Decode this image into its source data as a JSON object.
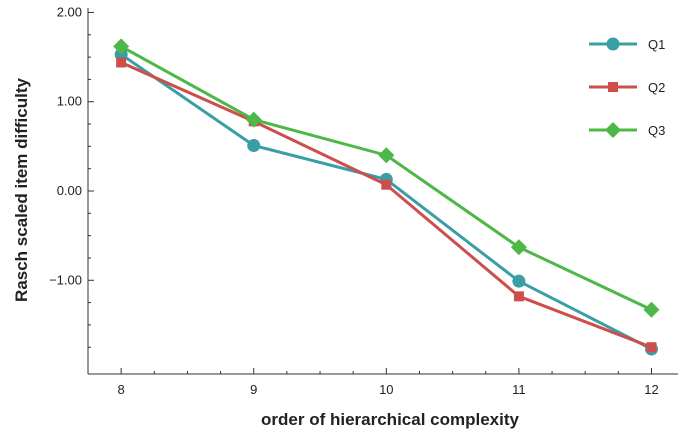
{
  "chart_data": {
    "type": "line",
    "title": "",
    "xlabel": "order of hierarchical complexity",
    "ylabel": "Rasch scaled item difficulty",
    "x": [
      8,
      9,
      10,
      11,
      12
    ],
    "x_tick_labels": [
      "8",
      "9",
      "10",
      "11",
      "12"
    ],
    "y_tick_values": [
      2.0,
      1.0,
      0.0,
      -1.0
    ],
    "y_tick_labels": [
      "2.00",
      "1.00",
      "0.00",
      "−1.00"
    ],
    "ylim": [
      -2.05,
      2.05
    ],
    "xlim": [
      7.75,
      12.2
    ],
    "grid": false,
    "legend_position": "top-right",
    "series": [
      {
        "name": "Q1",
        "marker": "circle",
        "color": "#3a9ea5",
        "values": [
          1.53,
          0.51,
          0.13,
          -1.01,
          -1.77
        ]
      },
      {
        "name": "Q2",
        "marker": "square",
        "color": "#cc4f4c",
        "values": [
          1.44,
          0.78,
          0.07,
          -1.18,
          -1.75
        ]
      },
      {
        "name": "Q3",
        "marker": "diamond",
        "color": "#4db848",
        "values": [
          1.62,
          0.8,
          0.4,
          -0.63,
          -1.33
        ]
      }
    ]
  }
}
